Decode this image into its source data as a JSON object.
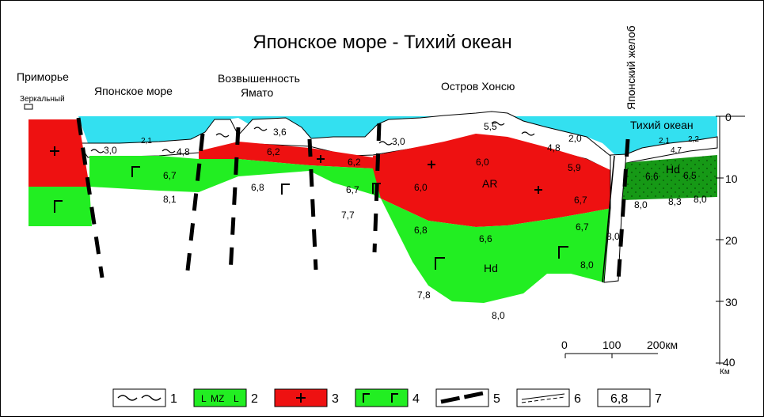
{
  "title": "Японское море - Тихий океан",
  "labels": {
    "primorye": "Приморье",
    "zerkalny": "Зеркальный",
    "japan_sea": "Японское море",
    "yamato_1": "Возвышенность",
    "yamato_2": "Ямато",
    "honshu": "Остров Хонсю",
    "trench": "Японский желоб",
    "pacific": "Тихий океан",
    "ar": "AR",
    "hd_main": "Hd",
    "hd_east": "Hd"
  },
  "velocities": {
    "v_30": "3,0",
    "v_21a": "2,1",
    "v_48a": "4,8",
    "v_36": "3,6",
    "v_30b": "3,0",
    "v_55": "5,5",
    "v_48b": "4,8",
    "v_20": "2,0",
    "v_62a": "6,2",
    "v_62b": "6,2",
    "v_60a": "6,0",
    "v_59": "5,9",
    "v_67a": "6,7",
    "v_81": "8,1",
    "v_68a": "6,8",
    "v_67b": "6,7",
    "v_60b": "6,0",
    "v_77": "7,7",
    "v_67c": "6,7",
    "v_68b": "6,8",
    "v_66a": "6,6",
    "v_67d": "6,7",
    "v_80a": "8,0",
    "v_78": "7,8",
    "v_80b": "8,0",
    "v_80c": "8,0",
    "v_80d": "8,0",
    "v_83": "8,3",
    "v_80e": "8,0",
    "v_21b": "2,1",
    "v_22": "2,2",
    "v_47": "4,7",
    "v_66b": "6,6",
    "v_65": "6,5"
  },
  "depth_axis": {
    "ticks": [
      "0",
      "10",
      "20",
      "30",
      "40"
    ],
    "unit": "Км"
  },
  "scale_bar": {
    "zero": "0",
    "mid": "100",
    "end": "200км"
  },
  "legend": [
    {
      "num": "1"
    },
    {
      "num": "2",
      "text": "MZ"
    },
    {
      "num": "3"
    },
    {
      "num": "4"
    },
    {
      "num": "5"
    },
    {
      "num": "6"
    },
    {
      "num": "7",
      "text": "6,8"
    }
  ],
  "colors": {
    "sea": "#33e0f0",
    "granite": "#ee1111",
    "basalt": "#22ee22",
    "mesozoic": "#1aa81a"
  }
}
